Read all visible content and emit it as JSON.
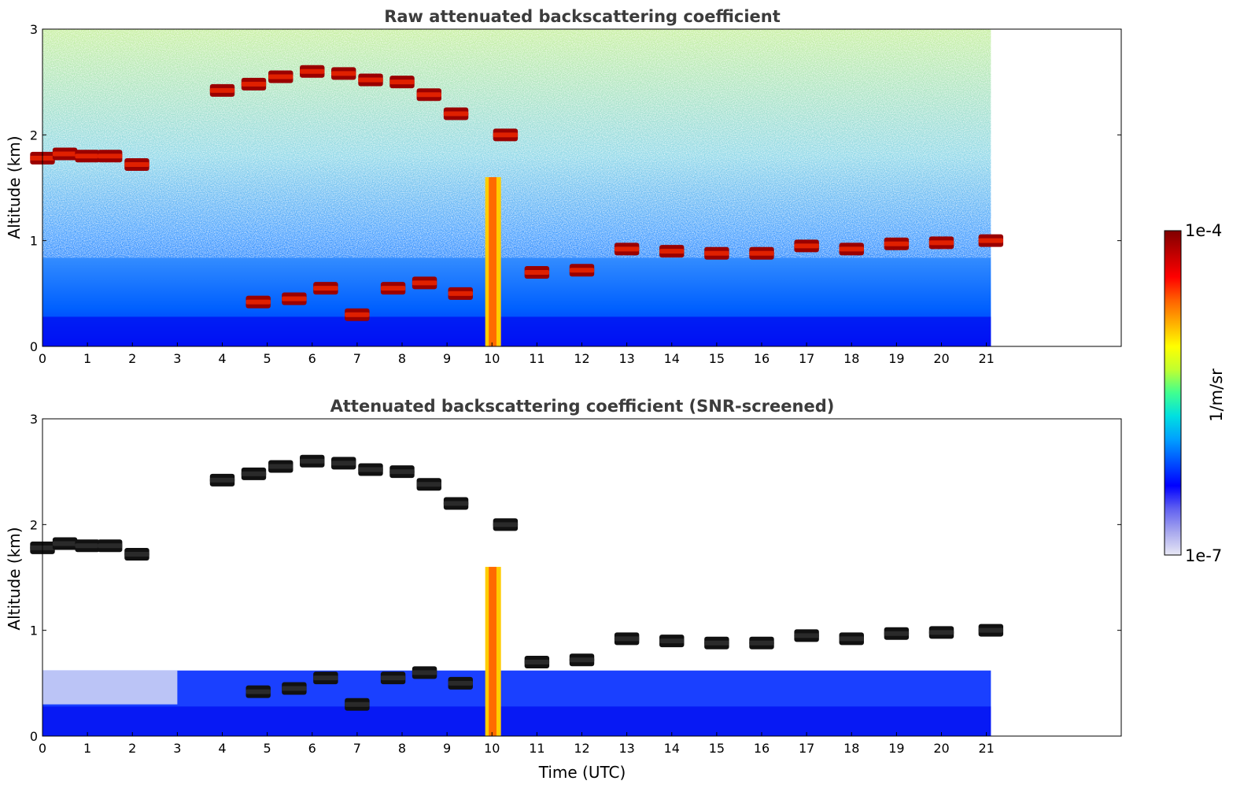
{
  "colors": {
    "colormap": [
      "#e8e8f5",
      "#a8a8ee",
      "#6060f0",
      "#0000ff",
      "#0050ff",
      "#00a0ff",
      "#00e0e0",
      "#40ff90",
      "#c0ff30",
      "#ffff00",
      "#ffb000",
      "#ff6000",
      "#ff0000",
      "#c00000",
      "#800000"
    ],
    "frame": "#000000",
    "title_text": "#3c3c3c"
  },
  "chart_data": [
    {
      "type": "heatmap",
      "title": "Raw attenuated backscattering coefficient",
      "ylabel": "Altitude (km)",
      "xlabel": "",
      "xlim": [
        0,
        24
      ],
      "ylim": [
        0,
        3
      ],
      "data_xrange": [
        0,
        21.1
      ],
      "xticks": [
        0,
        1,
        2,
        3,
        4,
        5,
        6,
        7,
        8,
        9,
        10,
        11,
        12,
        13,
        14,
        15,
        16,
        17,
        18,
        19,
        20,
        21
      ],
      "yticks": [
        0,
        1,
        2,
        3
      ],
      "cloud_layer": [
        [
          0.0,
          1.78
        ],
        [
          0.5,
          1.82
        ],
        [
          1.0,
          1.8
        ],
        [
          1.5,
          1.8
        ],
        [
          2.1,
          1.72
        ],
        [
          4.0,
          2.42
        ],
        [
          4.7,
          2.48
        ],
        [
          5.3,
          2.55
        ],
        [
          6.0,
          2.6
        ],
        [
          6.7,
          2.58
        ],
        [
          7.3,
          2.52
        ],
        [
          8.0,
          2.5
        ],
        [
          8.6,
          2.38
        ],
        [
          9.2,
          2.2
        ],
        [
          4.8,
          0.42
        ],
        [
          5.6,
          0.45
        ],
        [
          6.3,
          0.55
        ],
        [
          7.0,
          0.3
        ],
        [
          7.8,
          0.55
        ],
        [
          8.5,
          0.6
        ],
        [
          9.3,
          0.5
        ],
        [
          10.3,
          2.0
        ],
        [
          11.0,
          0.7
        ],
        [
          12.0,
          0.72
        ],
        [
          13.0,
          0.92
        ],
        [
          14.0,
          0.9
        ],
        [
          15.0,
          0.88
        ],
        [
          16.0,
          0.88
        ],
        [
          17.0,
          0.95
        ],
        [
          18.0,
          0.92
        ],
        [
          19.0,
          0.97
        ],
        [
          20.0,
          0.98
        ],
        [
          21.1,
          1.0
        ]
      ]
    },
    {
      "type": "heatmap",
      "title": "Attenuated backscattering coefficient (SNR-screened)",
      "ylabel": "Altitude (km)",
      "xlabel": "Time (UTC)",
      "xlim": [
        0,
        24
      ],
      "ylim": [
        0,
        3
      ],
      "data_xrange": [
        0,
        21.1
      ],
      "xticks": [
        0,
        1,
        2,
        3,
        4,
        5,
        6,
        7,
        8,
        9,
        10,
        11,
        12,
        13,
        14,
        15,
        16,
        17,
        18,
        19,
        20,
        21
      ],
      "yticks": [
        0,
        1,
        2,
        3
      ],
      "cloud_layer": [
        [
          0.0,
          1.78
        ],
        [
          0.5,
          1.82
        ],
        [
          1.0,
          1.8
        ],
        [
          1.5,
          1.8
        ],
        [
          2.1,
          1.72
        ],
        [
          4.0,
          2.42
        ],
        [
          4.7,
          2.48
        ],
        [
          5.3,
          2.55
        ],
        [
          6.0,
          2.6
        ],
        [
          6.7,
          2.58
        ],
        [
          7.3,
          2.52
        ],
        [
          8.0,
          2.5
        ],
        [
          8.6,
          2.38
        ],
        [
          9.2,
          2.2
        ],
        [
          4.8,
          0.42
        ],
        [
          5.6,
          0.45
        ],
        [
          6.3,
          0.55
        ],
        [
          7.0,
          0.3
        ],
        [
          7.8,
          0.55
        ],
        [
          8.5,
          0.6
        ],
        [
          9.3,
          0.5
        ],
        [
          10.3,
          2.0
        ],
        [
          11.0,
          0.7
        ],
        [
          12.0,
          0.72
        ],
        [
          13.0,
          0.92
        ],
        [
          14.0,
          0.9
        ],
        [
          15.0,
          0.88
        ],
        [
          16.0,
          0.88
        ],
        [
          17.0,
          0.95
        ],
        [
          18.0,
          0.92
        ],
        [
          19.0,
          0.97
        ],
        [
          20.0,
          0.98
        ],
        [
          21.1,
          1.0
        ]
      ]
    }
  ],
  "colorbar": {
    "label": "1/m/sr",
    "max_label": "1e-4",
    "min_label": "1e-7",
    "range": [
      1e-07,
      0.0001
    ],
    "scale": "log"
  }
}
